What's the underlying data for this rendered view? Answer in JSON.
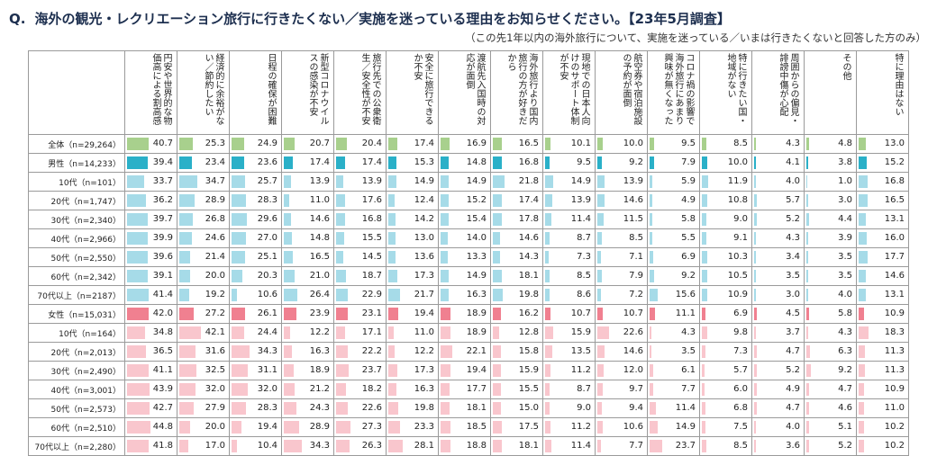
{
  "title": {
    "q": "Q.",
    "text": "海外の観光・レクリエーション旅行に行きたくない／実施を迷っている理由をお知らせください。【23年5月調査】"
  },
  "subtitle": "（この先1年以内の海外旅行について、実施を迷っている／いまは行きたくないと回答した方のみ）",
  "colors": {
    "total": "#a8d08d",
    "male_main": "#2ab0c8",
    "male_sub": "#a6dbe8",
    "female_main": "#f08090",
    "female_sub": "#f9c6cd"
  },
  "chart_data": {
    "type": "table",
    "title": "海外の観光・レクリエーション旅行に行きたくない／実施を迷っている理由をお知らせください。【23年5月調査】",
    "columns": [
      "円安や世界的な物価高による割高感",
      "経済的に余裕がない／節約したい",
      "日程の確保が困難",
      "新型コロナウイルスの感染が不安",
      "旅行先での公衆衛生／安全性が不安",
      "安全に旅行できるか不安",
      "渡航先入国時の対応が面倒",
      "海外旅行より国内旅行の方が好きだから",
      "現地での日本人向けのサポート体制が不安",
      "航空券や宿泊施設の予約が面倒",
      "コロナ禍の影響で海外旅行にあまり興味が無くなった",
      "特に行きたい国・地域がない",
      "周囲からの偏見・誹謗中傷が心配",
      "その他",
      "特に理由はない"
    ],
    "rows": [
      {
        "label": "全体（n=29,264）",
        "group": "total",
        "values": [
          40.7,
          25.3,
          24.9,
          20.7,
          20.4,
          17.4,
          16.9,
          16.5,
          10.1,
          10.0,
          9.5,
          8.5,
          4.3,
          4.8,
          13.0
        ]
      },
      {
        "label": "男性（n=14,233）",
        "group": "male_main",
        "values": [
          39.4,
          23.4,
          23.6,
          17.4,
          17.4,
          15.3,
          14.8,
          16.8,
          9.5,
          9.2,
          7.9,
          10.0,
          4.1,
          3.8,
          15.2
        ]
      },
      {
        "label": "10代（n=101）",
        "group": "male_sub",
        "values": [
          33.7,
          34.7,
          25.7,
          13.9,
          13.9,
          14.9,
          14.9,
          21.8,
          14.9,
          13.9,
          5.9,
          11.9,
          4.0,
          1.0,
          16.8
        ]
      },
      {
        "label": "20代（n=1,747）",
        "group": "male_sub",
        "values": [
          36.2,
          28.9,
          28.3,
          11.0,
          17.6,
          12.4,
          15.2,
          17.4,
          13.9,
          14.6,
          4.9,
          10.8,
          5.7,
          3.0,
          16.5
        ]
      },
      {
        "label": "30代（n=2,340）",
        "group": "male_sub",
        "values": [
          39.7,
          26.8,
          29.6,
          14.6,
          16.8,
          14.2,
          15.4,
          17.8,
          11.4,
          11.5,
          5.8,
          9.0,
          5.2,
          4.4,
          13.1
        ]
      },
      {
        "label": "40代（n=2,966）",
        "group": "male_sub",
        "values": [
          39.9,
          24.6,
          27.0,
          14.8,
          15.5,
          13.0,
          14.0,
          14.6,
          8.7,
          8.5,
          5.5,
          9.1,
          4.3,
          3.9,
          16.0
        ]
      },
      {
        "label": "50代（n=2,550）",
        "group": "male_sub",
        "values": [
          39.6,
          21.4,
          25.1,
          16.5,
          14.5,
          13.6,
          13.3,
          14.3,
          7.3,
          7.1,
          6.9,
          10.3,
          3.4,
          3.5,
          17.7
        ]
      },
      {
        "label": "60代（n=2,342）",
        "group": "male_sub",
        "values": [
          39.1,
          20.0,
          20.3,
          21.0,
          18.7,
          17.3,
          14.9,
          18.1,
          8.5,
          7.9,
          9.2,
          10.5,
          3.5,
          3.5,
          14.6
        ]
      },
      {
        "label": "70代以上（n=2187）",
        "group": "male_sub",
        "values": [
          41.4,
          19.2,
          10.6,
          26.4,
          22.9,
          21.7,
          16.3,
          19.8,
          8.6,
          7.2,
          15.6,
          10.9,
          3.0,
          4.0,
          13.1
        ]
      },
      {
        "label": "女性（n=15,031）",
        "group": "female_main",
        "values": [
          42.0,
          27.2,
          26.1,
          23.9,
          23.1,
          19.4,
          18.9,
          16.2,
          10.7,
          10.7,
          11.1,
          6.9,
          4.5,
          5.8,
          10.9
        ]
      },
      {
        "label": "10代（n=164）",
        "group": "female_sub",
        "values": [
          34.8,
          42.1,
          24.4,
          12.2,
          17.1,
          11.0,
          18.9,
          12.8,
          15.9,
          22.6,
          4.3,
          9.8,
          3.7,
          4.3,
          18.3
        ]
      },
      {
        "label": "20代（n=2,013）",
        "group": "female_sub",
        "values": [
          36.5,
          31.6,
          34.3,
          16.3,
          22.2,
          12.2,
          22.1,
          15.8,
          13.5,
          14.6,
          3.5,
          7.3,
          4.7,
          6.3,
          11.3
        ]
      },
      {
        "label": "30代（n=2,490）",
        "group": "female_sub",
        "values": [
          41.1,
          32.5,
          31.1,
          18.9,
          23.7,
          17.3,
          19.4,
          15.9,
          11.2,
          12.0,
          6.1,
          5.7,
          5.2,
          9.2,
          11.3
        ]
      },
      {
        "label": "40代（n=3,001）",
        "group": "female_sub",
        "values": [
          43.9,
          32.0,
          32.0,
          21.2,
          18.2,
          16.3,
          17.7,
          15.5,
          8.7,
          9.7,
          7.7,
          6.0,
          4.9,
          4.7,
          10.9
        ]
      },
      {
        "label": "50代（n=2,573）",
        "group": "female_sub",
        "values": [
          42.7,
          27.9,
          28.3,
          24.3,
          22.6,
          19.8,
          18.1,
          15.0,
          9.0,
          9.4,
          11.4,
          6.8,
          4.7,
          4.6,
          11.0
        ]
      },
      {
        "label": "60代（n=2,510）",
        "group": "female_sub",
        "values": [
          44.8,
          20.0,
          19.4,
          28.9,
          27.3,
          23.3,
          18.5,
          17.5,
          11.2,
          10.6,
          14.9,
          7.5,
          4.0,
          5.1,
          10.2
        ]
      },
      {
        "label": "70代以上（n=2,280）",
        "group": "female_sub",
        "values": [
          41.8,
          17.0,
          10.4,
          34.3,
          26.3,
          28.1,
          18.8,
          18.1,
          11.4,
          7.7,
          23.7,
          8.5,
          3.6,
          5.2,
          10.2
        ]
      }
    ]
  }
}
